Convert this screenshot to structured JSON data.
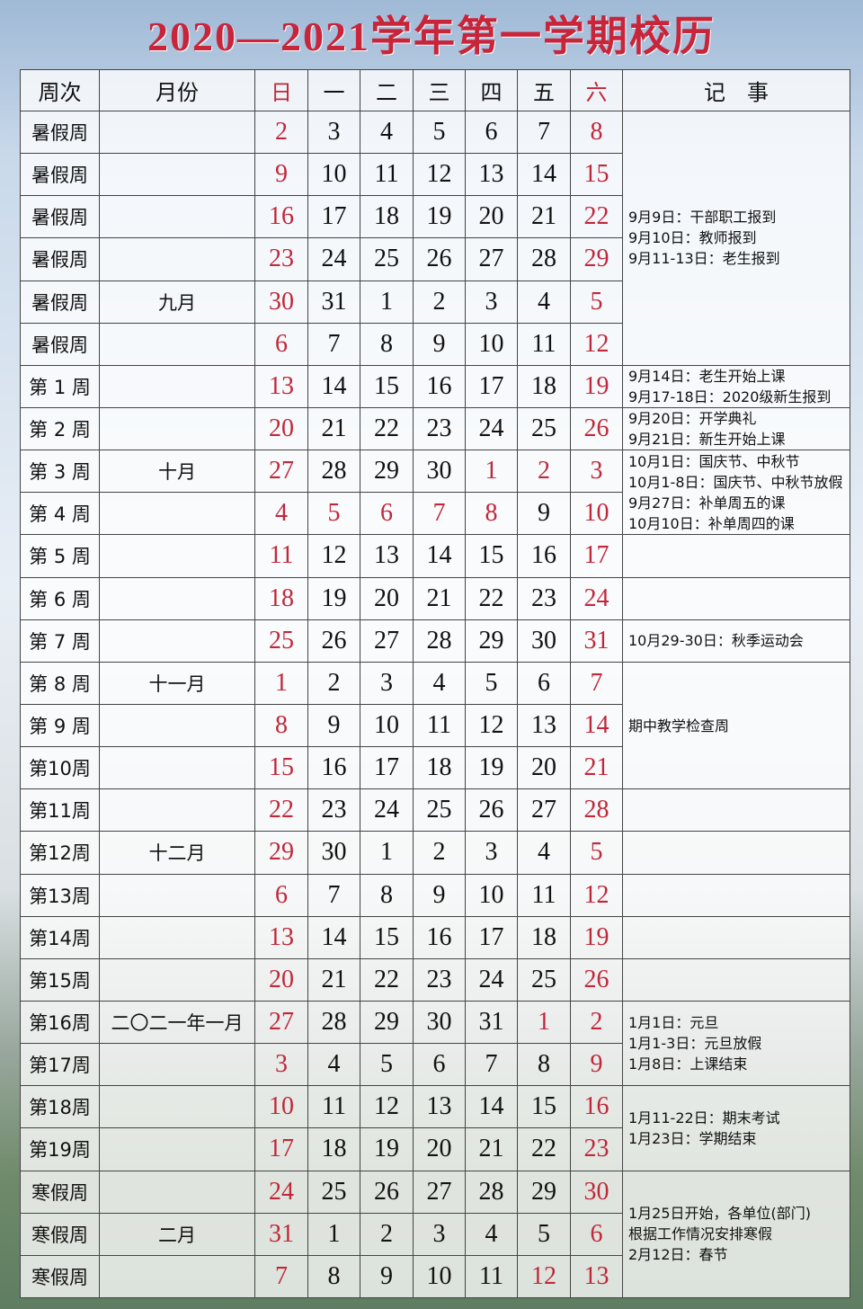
{
  "header": {
    "title": "2020—2021学年第一学期校历"
  },
  "table": {
    "columns": [
      "周次",
      "月份",
      "日",
      "一",
      "二",
      "三",
      "四",
      "五",
      "六",
      "记　事"
    ],
    "red_columns": [
      2,
      8
    ],
    "red_color": "#c0283a",
    "rows": [
      {
        "week": "暑假周",
        "month": "",
        "days": [
          2,
          3,
          4,
          5,
          6,
          7,
          8
        ],
        "holidays": []
      },
      {
        "week": "暑假周",
        "month": "",
        "days": [
          9,
          10,
          11,
          12,
          13,
          14,
          15
        ],
        "holidays": []
      },
      {
        "week": "暑假周",
        "month": "",
        "days": [
          16,
          17,
          18,
          19,
          20,
          21,
          22
        ],
        "holidays": []
      },
      {
        "week": "暑假周",
        "month": "",
        "days": [
          23,
          24,
          25,
          26,
          27,
          28,
          29
        ],
        "holidays": []
      },
      {
        "week": "暑假周",
        "month": "九月",
        "days": [
          30,
          31,
          1,
          2,
          3,
          4,
          5
        ],
        "holidays": []
      },
      {
        "week": "暑假周",
        "month": "",
        "days": [
          6,
          7,
          8,
          9,
          10,
          11,
          12
        ],
        "holidays": []
      },
      {
        "week": "第 1 周",
        "month": "",
        "days": [
          13,
          14,
          15,
          16,
          17,
          18,
          19
        ],
        "holidays": []
      },
      {
        "week": "第 2 周",
        "month": "",
        "days": [
          20,
          21,
          22,
          23,
          24,
          25,
          26
        ],
        "holidays": []
      },
      {
        "week": "第 3 周",
        "month": "十月",
        "days": [
          27,
          28,
          29,
          30,
          1,
          2,
          3
        ],
        "holidays": [
          4,
          5
        ]
      },
      {
        "week": "第 4 周",
        "month": "",
        "days": [
          4,
          5,
          6,
          7,
          8,
          9,
          10
        ],
        "holidays": [
          1,
          2,
          3,
          4
        ]
      },
      {
        "week": "第 5 周",
        "month": "",
        "days": [
          11,
          12,
          13,
          14,
          15,
          16,
          17
        ],
        "holidays": []
      },
      {
        "week": "第 6 周",
        "month": "",
        "days": [
          18,
          19,
          20,
          21,
          22,
          23,
          24
        ],
        "holidays": []
      },
      {
        "week": "第 7 周",
        "month": "",
        "days": [
          25,
          26,
          27,
          28,
          29,
          30,
          31
        ],
        "holidays": []
      },
      {
        "week": "第 8 周",
        "month": "十一月",
        "days": [
          1,
          2,
          3,
          4,
          5,
          6,
          7
        ],
        "holidays": []
      },
      {
        "week": "第 9 周",
        "month": "",
        "days": [
          8,
          9,
          10,
          11,
          12,
          13,
          14
        ],
        "holidays": []
      },
      {
        "week": "第10周",
        "month": "",
        "days": [
          15,
          16,
          17,
          18,
          19,
          20,
          21
        ],
        "holidays": []
      },
      {
        "week": "第11周",
        "month": "",
        "days": [
          22,
          23,
          24,
          25,
          26,
          27,
          28
        ],
        "holidays": []
      },
      {
        "week": "第12周",
        "month": "十二月",
        "days": [
          29,
          30,
          1,
          2,
          3,
          4,
          5
        ],
        "holidays": []
      },
      {
        "week": "第13周",
        "month": "",
        "days": [
          6,
          7,
          8,
          9,
          10,
          11,
          12
        ],
        "holidays": []
      },
      {
        "week": "第14周",
        "month": "",
        "days": [
          13,
          14,
          15,
          16,
          17,
          18,
          19
        ],
        "holidays": []
      },
      {
        "week": "第15周",
        "month": "",
        "days": [
          20,
          21,
          22,
          23,
          24,
          25,
          26
        ],
        "holidays": []
      },
      {
        "week": "第16周",
        "month": "二〇二一年一月",
        "days": [
          27,
          28,
          29,
          30,
          31,
          1,
          2
        ],
        "holidays": [
          5
        ]
      },
      {
        "week": "第17周",
        "month": "",
        "days": [
          3,
          4,
          5,
          6,
          7,
          8,
          9
        ],
        "holidays": []
      },
      {
        "week": "第18周",
        "month": "",
        "days": [
          10,
          11,
          12,
          13,
          14,
          15,
          16
        ],
        "holidays": []
      },
      {
        "week": "第19周",
        "month": "",
        "days": [
          17,
          18,
          19,
          20,
          21,
          22,
          23
        ],
        "holidays": []
      },
      {
        "week": "寒假周",
        "month": "",
        "days": [
          24,
          25,
          26,
          27,
          28,
          29,
          30
        ],
        "holidays": []
      },
      {
        "week": "寒假周",
        "month": "二月",
        "days": [
          31,
          1,
          2,
          3,
          4,
          5,
          6
        ],
        "holidays": []
      },
      {
        "week": "寒假周",
        "month": "",
        "days": [
          7,
          8,
          9,
          10,
          11,
          12,
          13
        ],
        "holidays": [
          5
        ]
      }
    ],
    "notes": [
      [
        "9月9日：干部职工报到",
        "9月10日：教师报到",
        "9月11-13日：老生报到"
      ],
      [
        "9月14日：老生开始上课",
        "9月17-18日：2020级新生报到"
      ],
      [
        "9月20日：开学典礼",
        "9月21日：新生开始上课"
      ],
      [
        "10月1日：国庆节、中秋节",
        "10月1-8日：国庆节、中秋节放假",
        "9月27日：补单周五的课",
        "10月10日：补单周四的课"
      ],
      [
        "10月29-30日：秋季运动会"
      ],
      [
        "期中教学检查周"
      ],
      [
        "1月1日：元旦",
        "1月1-3日：元旦放假",
        "1月8日：上课结束"
      ],
      [
        "1月11-22日：期末考试",
        "1月23日：学期结束"
      ],
      [
        "1月25日开始，各单位(部门)",
        "根据工作情况安排寒假",
        "2月12日：春节"
      ]
    ]
  }
}
